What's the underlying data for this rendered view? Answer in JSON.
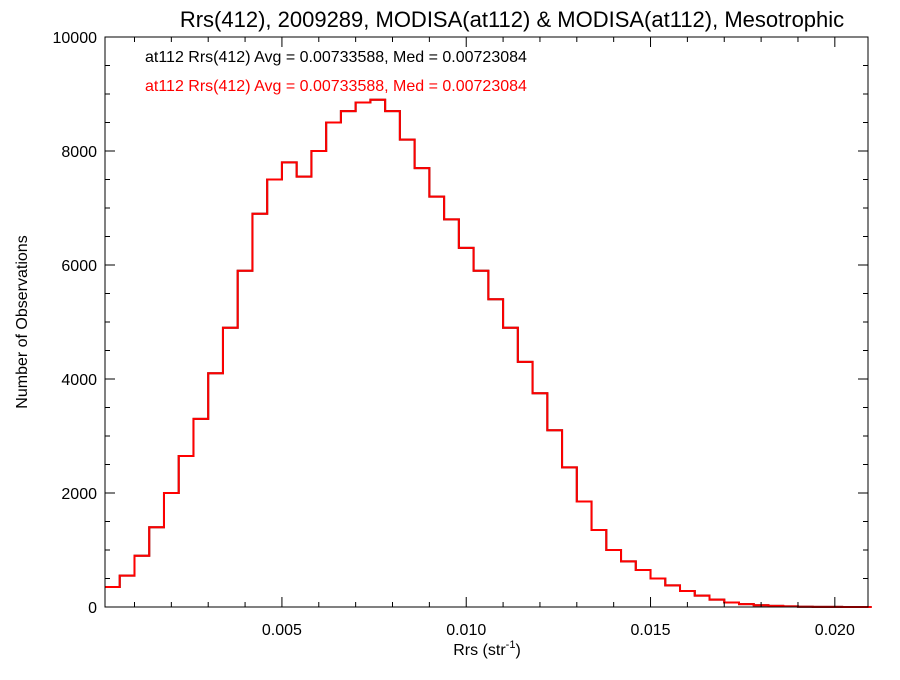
{
  "chart_data": {
    "type": "line",
    "title": "Rrs(412), 2009289, MODISA(at112) & MODISA(at112), Mesotrophic",
    "xlabel": "Rrs (str",
    "xlabel_sup": "-1",
    "xlabel_close": ")",
    "ylabel": "Number of Observations",
    "xlim": [
      0.0002,
      0.0209
    ],
    "ylim": [
      0,
      10000
    ],
    "x_ticks": [
      0.005,
      0.01,
      0.015,
      0.02
    ],
    "x_tick_labels": [
      "0.005",
      "0.010",
      "0.015",
      "0.020"
    ],
    "y_ticks": [
      0,
      2000,
      4000,
      6000,
      8000,
      10000
    ],
    "y_tick_labels": [
      "0",
      "2000",
      "4000",
      "6000",
      "8000",
      "10000"
    ],
    "grid": false,
    "annotations": [
      {
        "text": "at112 Rrs(412) Avg = 0.00733588, Med = 0.00723084",
        "color": "#000000"
      },
      {
        "text": "at112 Rrs(412) Avg = 0.00733588, Med = 0.00723084",
        "color": "#ff0000"
      }
    ],
    "series": [
      {
        "color": "#000000",
        "x": [
          0.0002,
          0.0006,
          0.001,
          0.0014,
          0.0018,
          0.0022,
          0.0026,
          0.003,
          0.0034,
          0.0038,
          0.0042,
          0.0046,
          0.005,
          0.0054,
          0.0058,
          0.0062,
          0.0066,
          0.007,
          0.0074,
          0.0078,
          0.0082,
          0.0086,
          0.009,
          0.0094,
          0.0098,
          0.0102,
          0.0106,
          0.011,
          0.0114,
          0.0118,
          0.0122,
          0.0126,
          0.013,
          0.0134,
          0.0138,
          0.0142,
          0.0146,
          0.015,
          0.0154,
          0.0158,
          0.0162,
          0.0166,
          0.017,
          0.0174,
          0.0178,
          0.0182,
          0.0186,
          0.019,
          0.0194,
          0.0198,
          0.0202,
          0.0206
        ],
        "y": [
          350,
          550,
          900,
          1400,
          2000,
          2650,
          3300,
          4100,
          4900,
          5900,
          6900,
          7500,
          7800,
          7550,
          8000,
          8500,
          8700,
          8850,
          8900,
          8700,
          8200,
          7700,
          7200,
          6800,
          6300,
          5900,
          5400,
          4900,
          4300,
          3750,
          3100,
          2450,
          1850,
          1350,
          1000,
          800,
          650,
          500,
          380,
          280,
          200,
          130,
          80,
          50,
          30,
          20,
          10,
          5,
          3,
          2,
          1,
          0
        ]
      },
      {
        "color": "#ff0000",
        "x": [
          0.0002,
          0.0006,
          0.001,
          0.0014,
          0.0018,
          0.0022,
          0.0026,
          0.003,
          0.0034,
          0.0038,
          0.0042,
          0.0046,
          0.005,
          0.0054,
          0.0058,
          0.0062,
          0.0066,
          0.007,
          0.0074,
          0.0078,
          0.0082,
          0.0086,
          0.009,
          0.0094,
          0.0098,
          0.0102,
          0.0106,
          0.011,
          0.0114,
          0.0118,
          0.0122,
          0.0126,
          0.013,
          0.0134,
          0.0138,
          0.0142,
          0.0146,
          0.015,
          0.0154,
          0.0158,
          0.0162,
          0.0166,
          0.017,
          0.0174,
          0.0178,
          0.0182,
          0.0186,
          0.019,
          0.0194,
          0.0198,
          0.0202,
          0.0206
        ],
        "y": [
          350,
          550,
          900,
          1400,
          2000,
          2650,
          3300,
          4100,
          4900,
          5900,
          6900,
          7500,
          7800,
          7550,
          8000,
          8500,
          8700,
          8850,
          8900,
          8700,
          8200,
          7700,
          7200,
          6800,
          6300,
          5900,
          5400,
          4900,
          4300,
          3750,
          3100,
          2450,
          1850,
          1350,
          1000,
          800,
          650,
          500,
          380,
          280,
          200,
          130,
          80,
          50,
          30,
          20,
          10,
          5,
          3,
          2,
          1,
          0
        ]
      }
    ]
  }
}
